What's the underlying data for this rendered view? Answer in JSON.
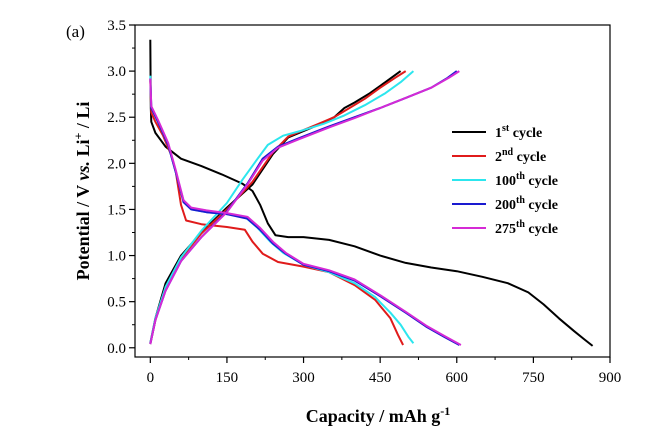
{
  "chart_data": {
    "type": "line",
    "panel_label": "(a)",
    "xlabel": "Capacity / mAh g",
    "xlabel_sup": "-1",
    "ylabel_parts": {
      "pre": "Potential / V ",
      "vs": "vs.",
      "mid": " Li",
      "sup": "+",
      "post": " / Li"
    },
    "xlim": [
      -30,
      900
    ],
    "ylim": [
      -0.1,
      3.5
    ],
    "x_ticks": [
      0,
      150,
      300,
      450,
      600,
      750,
      900
    ],
    "x_tick_labels": [
      "0",
      "150",
      "300",
      "450",
      "600",
      "750",
      "900"
    ],
    "y_ticks": [
      0.0,
      0.5,
      1.0,
      1.5,
      2.0,
      2.5,
      3.0,
      3.5
    ],
    "y_tick_labels": [
      "0.0",
      "0.5",
      "1.0",
      "1.5",
      "2.0",
      "2.5",
      "3.0",
      "3.5"
    ],
    "series": [
      {
        "name": "1st cycle",
        "label_num": "1",
        "label_sup": "st",
        "label_rest": " cycle",
        "color": "#000000",
        "discharge": [
          [
            0,
            3.34
          ],
          [
            1,
            2.6
          ],
          [
            2,
            2.45
          ],
          [
            10,
            2.33
          ],
          [
            30,
            2.18
          ],
          [
            60,
            2.05
          ],
          [
            100,
            1.97
          ],
          [
            140,
            1.88
          ],
          [
            180,
            1.78
          ],
          [
            200,
            1.7
          ],
          [
            215,
            1.55
          ],
          [
            230,
            1.35
          ],
          [
            245,
            1.22
          ],
          [
            270,
            1.2
          ],
          [
            300,
            1.2
          ],
          [
            350,
            1.17
          ],
          [
            400,
            1.1
          ],
          [
            450,
            1.0
          ],
          [
            500,
            0.92
          ],
          [
            550,
            0.87
          ],
          [
            600,
            0.83
          ],
          [
            650,
            0.77
          ],
          [
            700,
            0.7
          ],
          [
            740,
            0.6
          ],
          [
            770,
            0.47
          ],
          [
            800,
            0.32
          ],
          [
            830,
            0.18
          ],
          [
            850,
            0.09
          ],
          [
            866,
            0.02
          ]
        ],
        "charge": [
          [
            0,
            0.05
          ],
          [
            10,
            0.32
          ],
          [
            30,
            0.7
          ],
          [
            60,
            1.0
          ],
          [
            100,
            1.25
          ],
          [
            150,
            1.52
          ],
          [
            200,
            1.77
          ],
          [
            240,
            2.1
          ],
          [
            270,
            2.28
          ],
          [
            300,
            2.35
          ],
          [
            330,
            2.42
          ],
          [
            360,
            2.5
          ],
          [
            380,
            2.6
          ],
          [
            400,
            2.66
          ],
          [
            430,
            2.76
          ],
          [
            460,
            2.88
          ],
          [
            490,
            3.0
          ]
        ]
      },
      {
        "name": "2nd cycle",
        "label_num": "2",
        "label_sup": "nd",
        "label_rest": " cycle",
        "color": "#e01b1b",
        "discharge": [
          [
            0,
            2.9
          ],
          [
            2,
            2.55
          ],
          [
            10,
            2.45
          ],
          [
            25,
            2.3
          ],
          [
            40,
            2.1
          ],
          [
            50,
            1.9
          ],
          [
            60,
            1.55
          ],
          [
            70,
            1.38
          ],
          [
            100,
            1.34
          ],
          [
            150,
            1.31
          ],
          [
            185,
            1.28
          ],
          [
            200,
            1.15
          ],
          [
            220,
            1.02
          ],
          [
            250,
            0.93
          ],
          [
            300,
            0.88
          ],
          [
            350,
            0.82
          ],
          [
            400,
            0.68
          ],
          [
            440,
            0.52
          ],
          [
            470,
            0.32
          ],
          [
            485,
            0.14
          ],
          [
            495,
            0.03
          ]
        ],
        "charge": [
          [
            0,
            0.04
          ],
          [
            10,
            0.3
          ],
          [
            30,
            0.65
          ],
          [
            60,
            0.97
          ],
          [
            100,
            1.24
          ],
          [
            150,
            1.5
          ],
          [
            200,
            1.8
          ],
          [
            240,
            2.12
          ],
          [
            270,
            2.29
          ],
          [
            300,
            2.36
          ],
          [
            330,
            2.43
          ],
          [
            360,
            2.5
          ],
          [
            390,
            2.6
          ],
          [
            420,
            2.7
          ],
          [
            450,
            2.82
          ],
          [
            480,
            2.93
          ],
          [
            500,
            3.0
          ]
        ]
      },
      {
        "name": "100th cycle",
        "label_num": "100",
        "label_sup": "th",
        "label_rest": " cycle",
        "color": "#2ce6ee",
        "discharge": [
          [
            0,
            2.95
          ],
          [
            2,
            2.6
          ],
          [
            15,
            2.45
          ],
          [
            35,
            2.2
          ],
          [
            50,
            1.9
          ],
          [
            65,
            1.6
          ],
          [
            80,
            1.5
          ],
          [
            110,
            1.47
          ],
          [
            150,
            1.45
          ],
          [
            185,
            1.42
          ],
          [
            210,
            1.3
          ],
          [
            235,
            1.15
          ],
          [
            260,
            1.03
          ],
          [
            300,
            0.9
          ],
          [
            350,
            0.82
          ],
          [
            400,
            0.7
          ],
          [
            440,
            0.55
          ],
          [
            470,
            0.38
          ],
          [
            490,
            0.25
          ],
          [
            505,
            0.12
          ],
          [
            515,
            0.05
          ]
        ],
        "charge": [
          [
            0,
            0.05
          ],
          [
            10,
            0.32
          ],
          [
            30,
            0.66
          ],
          [
            60,
            0.98
          ],
          [
            100,
            1.27
          ],
          [
            150,
            1.57
          ],
          [
            180,
            1.82
          ],
          [
            210,
            2.05
          ],
          [
            230,
            2.2
          ],
          [
            260,
            2.3
          ],
          [
            300,
            2.36
          ],
          [
            340,
            2.43
          ],
          [
            380,
            2.52
          ],
          [
            420,
            2.63
          ],
          [
            460,
            2.76
          ],
          [
            490,
            2.88
          ],
          [
            515,
            3.0
          ]
        ]
      },
      {
        "name": "200th cycle",
        "label_num": "200",
        "label_sup": "th",
        "label_rest": " cycle",
        "color": "#1a1ad0",
        "discharge": [
          [
            0,
            2.92
          ],
          [
            2,
            2.6
          ],
          [
            15,
            2.45
          ],
          [
            35,
            2.2
          ],
          [
            50,
            1.9
          ],
          [
            65,
            1.58
          ],
          [
            80,
            1.5
          ],
          [
            110,
            1.47
          ],
          [
            150,
            1.45
          ],
          [
            190,
            1.4
          ],
          [
            215,
            1.28
          ],
          [
            240,
            1.13
          ],
          [
            265,
            1.02
          ],
          [
            300,
            0.9
          ],
          [
            350,
            0.83
          ],
          [
            400,
            0.73
          ],
          [
            450,
            0.56
          ],
          [
            500,
            0.38
          ],
          [
            540,
            0.23
          ],
          [
            575,
            0.12
          ],
          [
            605,
            0.03
          ]
        ],
        "charge": [
          [
            0,
            0.04
          ],
          [
            10,
            0.3
          ],
          [
            30,
            0.62
          ],
          [
            60,
            0.94
          ],
          [
            100,
            1.2
          ],
          [
            150,
            1.48
          ],
          [
            190,
            1.78
          ],
          [
            220,
            2.05
          ],
          [
            250,
            2.18
          ],
          [
            290,
            2.27
          ],
          [
            350,
            2.4
          ],
          [
            400,
            2.5
          ],
          [
            450,
            2.6
          ],
          [
            500,
            2.71
          ],
          [
            550,
            2.82
          ],
          [
            580,
            2.92
          ],
          [
            600,
            3.0
          ]
        ]
      },
      {
        "name": "275th cycle",
        "label_num": "275",
        "label_sup": "th",
        "label_rest": " cycle",
        "color": "#d52ad5",
        "discharge": [
          [
            0,
            2.92
          ],
          [
            2,
            2.62
          ],
          [
            15,
            2.47
          ],
          [
            35,
            2.22
          ],
          [
            50,
            1.92
          ],
          [
            65,
            1.6
          ],
          [
            80,
            1.52
          ],
          [
            110,
            1.49
          ],
          [
            150,
            1.46
          ],
          [
            190,
            1.42
          ],
          [
            215,
            1.3
          ],
          [
            240,
            1.15
          ],
          [
            265,
            1.03
          ],
          [
            300,
            0.91
          ],
          [
            350,
            0.84
          ],
          [
            400,
            0.74
          ],
          [
            450,
            0.57
          ],
          [
            500,
            0.39
          ],
          [
            540,
            0.24
          ],
          [
            575,
            0.13
          ],
          [
            608,
            0.03
          ]
        ],
        "charge": [
          [
            0,
            0.04
          ],
          [
            10,
            0.3
          ],
          [
            30,
            0.62
          ],
          [
            60,
            0.94
          ],
          [
            100,
            1.2
          ],
          [
            150,
            1.47
          ],
          [
            190,
            1.77
          ],
          [
            220,
            2.03
          ],
          [
            250,
            2.17
          ],
          [
            290,
            2.26
          ],
          [
            350,
            2.39
          ],
          [
            400,
            2.49
          ],
          [
            450,
            2.6
          ],
          [
            500,
            2.71
          ],
          [
            550,
            2.82
          ],
          [
            585,
            2.93
          ],
          [
            605,
            3.0
          ]
        ]
      }
    ]
  }
}
